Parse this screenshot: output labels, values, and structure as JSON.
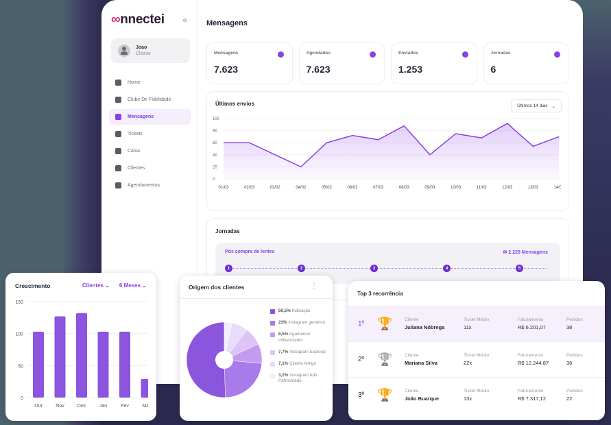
{
  "sidebar": {
    "brand": "connectei",
    "collapse_icon": "«",
    "user": {
      "name": "Joao",
      "role": "Cliente"
    },
    "items": [
      {
        "label": "Home",
        "icon": "dashboard-icon"
      },
      {
        "label": "Clube De Fidelidade",
        "icon": "loyalty-icon"
      },
      {
        "label": "Mensagens",
        "icon": "chat-icon",
        "active": true
      },
      {
        "label": "Tickets",
        "icon": "headset-icon"
      },
      {
        "label": "Caixa",
        "icon": "tag-icon"
      },
      {
        "label": "Clientes",
        "icon": "people-icon"
      },
      {
        "label": "Agendamentos",
        "icon": "message-icon"
      }
    ]
  },
  "header": {
    "title": "Mensagens"
  },
  "stats": [
    {
      "label": "Mensagens",
      "value": "7.623",
      "icon": "chat-icon"
    },
    {
      "label": "Agendados",
      "value": "7.623",
      "icon": "calendar-icon"
    },
    {
      "label": "Enviados",
      "value": "1.253",
      "icon": "clock-icon"
    },
    {
      "label": "Jornadas",
      "value": "6",
      "icon": "person-icon"
    }
  ],
  "envios": {
    "title": "Últimos envios",
    "range": "Últimos 14 dias"
  },
  "jornadas": {
    "title": "Jornadas",
    "journey_name": "Pós compra de lentes",
    "messages": "2.229 Mensagens",
    "steps": [
      "1",
      "2",
      "3",
      "4",
      "5"
    ]
  },
  "crescimento": {
    "title": "Crescimento",
    "filter1": "Clientes",
    "filter2": "6 Meses"
  },
  "origem": {
    "title": "Origem dos clientes"
  },
  "top3": {
    "title": "Top 3 recorrência",
    "col_client": "Cliente",
    "col_ticket": "Ticket Médio",
    "col_revenue": "Faturamento",
    "col_orders": "Pedidos",
    "rows": [
      {
        "rank": "1º",
        "name": "Juliana Nóbrega",
        "ticket": "11x",
        "revenue": "R$ 6.201,07",
        "orders": "38",
        "trophy": "gold"
      },
      {
        "rank": "2º",
        "name": "Mariana Silva",
        "ticket": "22x",
        "revenue": "R$ 12.244,87",
        "orders": "36",
        "trophy": "silver"
      },
      {
        "rank": "3º",
        "name": "João Buarque",
        "ticket": "13x",
        "revenue": "R$ 7.317,12",
        "orders": "22",
        "trophy": "bronze"
      }
    ]
  },
  "chart_data": [
    {
      "type": "area",
      "title": "Últimos envios",
      "categories": [
        "01/03",
        "02/03",
        "03/02",
        "04/02",
        "05/02",
        "06/02",
        "07/03",
        "08/03",
        "09/03",
        "10/03",
        "11/03",
        "12/03",
        "13/03",
        "14/03"
      ],
      "values": [
        60,
        60,
        40,
        20,
        60,
        72,
        65,
        88,
        40,
        75,
        68,
        92,
        54,
        70
      ],
      "yticks": [
        0,
        20,
        40,
        60,
        80,
        100
      ],
      "ylim": [
        0,
        100
      ],
      "color": "#8b3fe8"
    },
    {
      "type": "bar",
      "title": "Crescimento",
      "categories": [
        "Out",
        "Nov",
        "Dez",
        "Jan",
        "Fev",
        "Mar"
      ],
      "values": [
        103,
        127,
        132,
        103,
        103,
        29
      ],
      "yticks": [
        0,
        50,
        100,
        150
      ],
      "ylim": [
        0,
        150
      ],
      "color": "#8b55de"
    },
    {
      "type": "pie",
      "title": "Origem dos clientes",
      "labels": [
        "Indicação",
        "Instagram genérico",
        "Agamenon influenciador",
        "Instagram Explorar",
        "Cliente Antigo",
        "Instagram Ads Patrocinado"
      ],
      "values": [
        50.5,
        23,
        8.5,
        7.7,
        7.1,
        3.2
      ],
      "display": [
        "50,5%",
        "23%",
        "8,5%",
        "7,7%",
        "7,1%",
        "3,2%"
      ],
      "colors": [
        "#8b55de",
        "#a97aea",
        "#c39cf0",
        "#dcc4f6",
        "#e9dcf9",
        "#f3ecfc"
      ]
    }
  ]
}
